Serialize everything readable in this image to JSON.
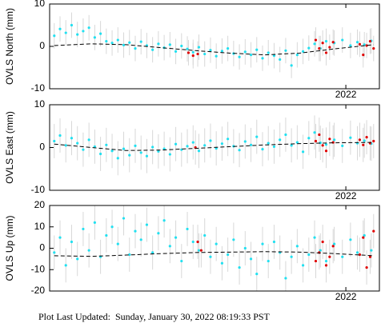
{
  "chart_data": [
    {
      "type": "scatter",
      "ylabel": "OVLS North (mm)",
      "xlim": [
        2019.44,
        2022.29
      ],
      "xticks": [
        2022
      ],
      "ylim": [
        -10,
        10
      ],
      "yticks": [
        -10,
        0,
        10
      ],
      "series": [
        {
          "color": "#22e0f0",
          "error": 3,
          "x": [
            2019.48,
            2019.53,
            2019.58,
            2019.63,
            2019.68,
            2019.73,
            2019.78,
            2019.83,
            2019.88,
            2019.93,
            2019.98,
            2020.03,
            2020.08,
            2020.13,
            2020.18,
            2020.23,
            2020.28,
            2020.33,
            2020.38,
            2020.43,
            2020.48,
            2020.53,
            2020.58,
            2020.63,
            2020.68,
            2020.73,
            2020.78,
            2020.83,
            2020.88,
            2020.93,
            2020.98,
            2021.03,
            2021.08,
            2021.13,
            2021.18,
            2021.23,
            2021.28,
            2021.33,
            2021.38,
            2021.43,
            2021.48,
            2021.53,
            2021.58,
            2021.63,
            2021.68,
            2021.73,
            2021.78,
            2021.83,
            2021.9,
            2021.97,
            2022.04,
            2022.1,
            2022.16,
            2022.22
          ],
          "values": [
            2.5,
            4.1,
            3.2,
            5.0,
            2.8,
            3.6,
            4.4,
            2.1,
            3.0,
            1.2,
            0.8,
            1.5,
            0.3,
            0.9,
            -0.5,
            1.1,
            0.2,
            -0.8,
            0.6,
            -0.3,
            0.4,
            -1.2,
            0.1,
            -0.6,
            -1.4,
            -0.2,
            -1.8,
            -0.9,
            -2.3,
            -1.1,
            -0.5,
            -1.7,
            -2.5,
            -1.3,
            -2.0,
            -0.8,
            -2.8,
            -1.5,
            -2.2,
            -3.1,
            -1.0,
            -4.5,
            -2.0,
            -1.2,
            -0.4,
            0.6,
            -0.5,
            1.2,
            0.8,
            1.5,
            0.2,
            1.0,
            0.4,
            1.3
          ]
        },
        {
          "color": "#e00000",
          "error": 3,
          "x": [
            2020.64,
            2020.68,
            2020.72,
            2021.74,
            2021.77,
            2021.8,
            2021.83,
            2021.86,
            2021.89,
            2022.12,
            2022.15,
            2022.18,
            2022.21,
            2022.24
          ],
          "values": [
            -1.5,
            -2.2,
            -1.8,
            1.5,
            -0.5,
            0.8,
            -1.5,
            -0.2,
            1.0,
            0.5,
            -2.0,
            0.2,
            1.2,
            -0.5
          ]
        },
        {
          "type": "line",
          "style": "dashed",
          "color": "#000000",
          "x": [
            2019.48,
            2019.8,
            2020.1,
            2020.4,
            2020.7,
            2021.0,
            2021.3,
            2021.6,
            2021.9,
            2022.24
          ],
          "values": [
            0.2,
            0.6,
            0.4,
            -0.3,
            -1.0,
            -1.6,
            -2.0,
            -1.6,
            -0.6,
            0.4
          ]
        }
      ]
    },
    {
      "type": "scatter",
      "ylabel": "OVLS East (mm)",
      "xlim": [
        2019.44,
        2022.29
      ],
      "xticks": [
        2022
      ],
      "ylim": [
        -10,
        10
      ],
      "yticks": [
        -10,
        0,
        10
      ],
      "series": [
        {
          "color": "#22e0f0",
          "error": 4,
          "x": [
            2019.48,
            2019.53,
            2019.58,
            2019.63,
            2019.68,
            2019.73,
            2019.78,
            2019.83,
            2019.88,
            2019.93,
            2019.98,
            2020.03,
            2020.08,
            2020.13,
            2020.18,
            2020.23,
            2020.28,
            2020.33,
            2020.38,
            2020.43,
            2020.48,
            2020.53,
            2020.58,
            2020.63,
            2020.68,
            2020.73,
            2020.78,
            2020.83,
            2020.88,
            2020.93,
            2020.98,
            2021.03,
            2021.08,
            2021.13,
            2021.18,
            2021.23,
            2021.28,
            2021.33,
            2021.38,
            2021.43,
            2021.48,
            2021.53,
            2021.58,
            2021.63,
            2021.68,
            2021.73,
            2021.78,
            2021.83,
            2021.9,
            2021.97,
            2022.04,
            2022.1,
            2022.16,
            2022.22
          ],
          "values": [
            1.5,
            2.8,
            0.5,
            2.2,
            1.0,
            -0.5,
            1.8,
            0.2,
            -1.5,
            0.6,
            -0.8,
            -2.5,
            -0.3,
            -1.8,
            0.4,
            -1.2,
            -2.0,
            0.1,
            -0.9,
            -0.3,
            -1.6,
            0.8,
            -0.5,
            0.3,
            1.2,
            -0.8,
            0.5,
            1.6,
            -0.2,
            0.9,
            2.0,
            0.3,
            -0.6,
            1.4,
            0.6,
            2.5,
            -0.4,
            1.0,
            0.2,
            1.8,
            3.0,
            0.5,
            1.2,
            -1.0,
            2.2,
            3.5,
            1.1,
            0.7,
            1.8,
            0.4,
            2.3,
            1.0,
            1.6,
            0.9
          ]
        },
        {
          "color": "#e00000",
          "error": 4,
          "x": [
            2020.7,
            2021.74,
            2021.77,
            2021.8,
            2021.83,
            2021.86,
            2021.89,
            2022.12,
            2022.15,
            2022.18,
            2022.21,
            2022.24
          ],
          "values": [
            0.0,
            1.5,
            3.0,
            0.5,
            -0.8,
            2.0,
            1.2,
            1.8,
            0.6,
            2.4,
            1.0,
            1.5
          ]
        },
        {
          "type": "line",
          "style": "dashed",
          "color": "#000000",
          "x": [
            2019.48,
            2019.8,
            2020.1,
            2020.4,
            2020.7,
            2021.0,
            2021.3,
            2021.6,
            2021.9,
            2022.24
          ],
          "values": [
            0.8,
            0.0,
            -0.7,
            -0.6,
            -0.2,
            0.2,
            0.6,
            0.9,
            1.1,
            1.2
          ]
        }
      ]
    },
    {
      "type": "scatter",
      "ylabel": "OVLS Up (mm)",
      "xlim": [
        2019.44,
        2022.29
      ],
      "xticks": [
        2022
      ],
      "ylim": [
        -20,
        20
      ],
      "yticks": [
        -20,
        -10,
        0,
        10,
        20
      ],
      "series": [
        {
          "color": "#22e0f0",
          "error": 8,
          "x": [
            2019.48,
            2019.53,
            2019.58,
            2019.63,
            2019.68,
            2019.73,
            2019.78,
            2019.83,
            2019.88,
            2019.93,
            2019.98,
            2020.03,
            2020.08,
            2020.13,
            2020.18,
            2020.23,
            2020.28,
            2020.33,
            2020.38,
            2020.43,
            2020.48,
            2020.53,
            2020.58,
            2020.63,
            2020.68,
            2020.73,
            2020.78,
            2020.83,
            2020.88,
            2020.93,
            2020.98,
            2021.03,
            2021.08,
            2021.13,
            2021.18,
            2021.23,
            2021.28,
            2021.33,
            2021.38,
            2021.43,
            2021.48,
            2021.53,
            2021.58,
            2021.63,
            2021.68,
            2021.73,
            2021.78,
            2021.83,
            2021.9,
            2021.97,
            2022.04,
            2022.1,
            2022.16,
            2022.22
          ],
          "values": [
            -2,
            5,
            -8,
            3,
            -5,
            9,
            -1,
            12,
            -4,
            6,
            10,
            2,
            14,
            -3,
            8,
            4,
            11,
            -2,
            7,
            13,
            1,
            5,
            -6,
            9,
            3,
            -1,
            6,
            -4,
            2,
            -7,
            -3,
            4,
            -9,
            0,
            -5,
            -12,
            2,
            -6,
            3,
            -2,
            -14,
            -4,
            1,
            -8,
            -3,
            5,
            -1,
            -6,
            2,
            -4,
            4,
            -2,
            6,
            -1
          ]
        },
        {
          "color": "#e00000",
          "error": 8,
          "x": [
            2020.72,
            2020.75,
            2021.74,
            2021.77,
            2021.8,
            2021.83,
            2021.86,
            2021.89,
            2022.12,
            2022.15,
            2022.18,
            2022.21,
            2022.24
          ],
          "values": [
            3,
            -1,
            -6,
            -2,
            3,
            -8,
            -4,
            1,
            -3,
            5,
            -9,
            -4,
            8
          ]
        },
        {
          "type": "line",
          "style": "dashed",
          "color": "#000000",
          "x": [
            2019.48,
            2019.8,
            2020.1,
            2020.4,
            2020.7,
            2021.0,
            2021.3,
            2021.6,
            2021.9,
            2022.24
          ],
          "values": [
            -3.5,
            -3.8,
            -3.2,
            -2.5,
            -2.0,
            -1.8,
            -1.6,
            -1.8,
            -2.5,
            -3.5
          ]
        }
      ]
    }
  ],
  "footer": "Plot Last Updated:  Sunday, January 30, 2022 08:19:33 PST"
}
